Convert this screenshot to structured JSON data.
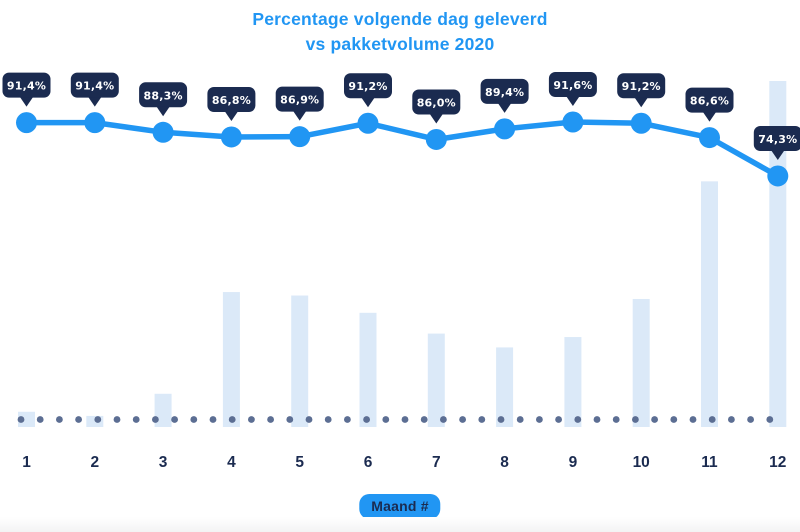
{
  "title": {
    "line1": "Percentage volgende dag geleverd",
    "line2": "vs pakketvolume 2020"
  },
  "x_axis": {
    "label": "Maand #",
    "tick_labels": [
      "1",
      "2",
      "3",
      "4",
      "5",
      "6",
      "7",
      "8",
      "9",
      "10",
      "11",
      "12"
    ]
  },
  "colors": {
    "accent_blue": "#2196f3",
    "navy": "#1b2b50",
    "bar_fill": "#dbe9f8",
    "baseline_dot": "#5c6e93",
    "bubble_fill": "#1b2b50",
    "bubble_text": "#ffffff",
    "background": "#ffffff"
  },
  "chart_data": {
    "type": "line",
    "subtype": "combo: line with data-label bubbles + background volume bars",
    "title": "Percentage volgende dag geleverd vs pakketvolume 2020",
    "xlabel": "Maand #",
    "ylabel": "",
    "categories": [
      "1",
      "2",
      "3",
      "4",
      "5",
      "6",
      "7",
      "8",
      "9",
      "10",
      "11",
      "12"
    ],
    "series": [
      {
        "name": "Percentage volgende dag geleverd",
        "type": "line",
        "unit": "%",
        "values": [
          91.4,
          91.4,
          88.3,
          86.8,
          86.9,
          91.2,
          86.0,
          89.4,
          91.6,
          91.2,
          86.6,
          74.3
        ],
        "point_labels": [
          "91,4%",
          "91,4%",
          "88,3%",
          "86,8%",
          "86,9%",
          "91,2%",
          "86,0%",
          "89,4%",
          "91,6%",
          "91,2%",
          "86,6%",
          "74,3%"
        ]
      },
      {
        "name": "Pakketvolume 2020",
        "type": "bar",
        "unit": "relative bar height, % of max (no numeric axis shown in chart)",
        "values": [
          4.4,
          3.2,
          9.6,
          39,
          38,
          33,
          27,
          23,
          26,
          37,
          71,
          100
        ]
      }
    ],
    "legend": "none",
    "grid": false,
    "baseline_style": "dotted"
  }
}
